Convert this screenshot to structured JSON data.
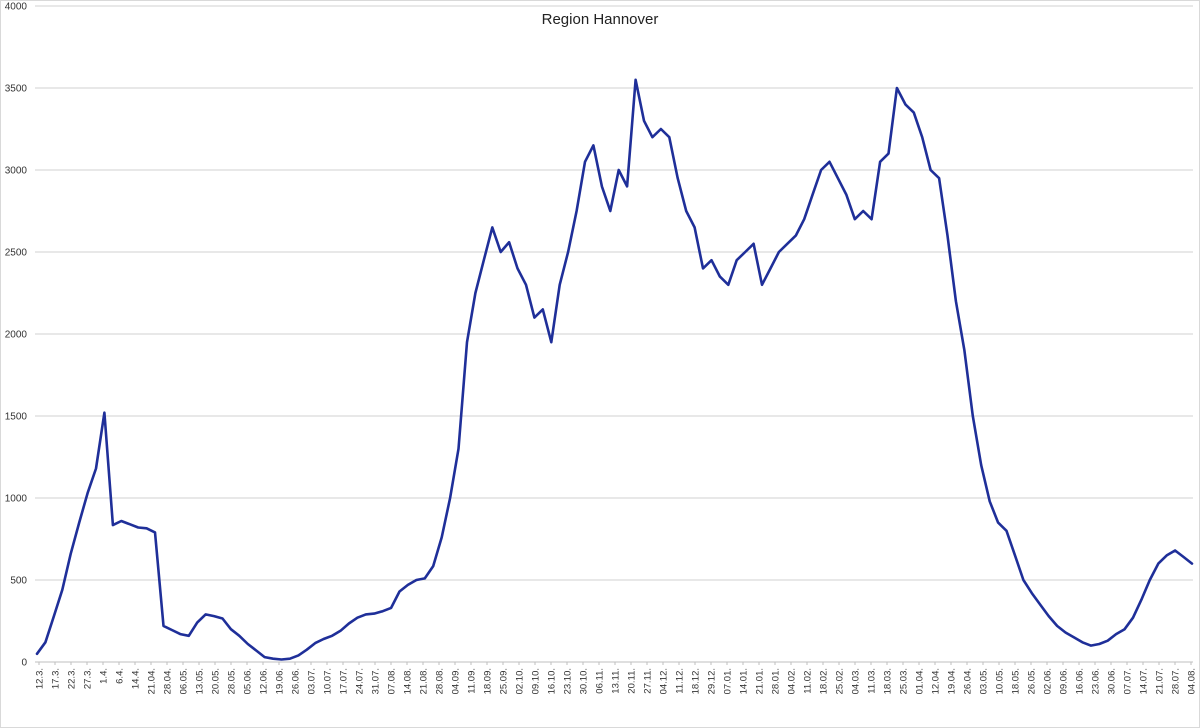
{
  "chart_data": {
    "type": "line",
    "title": "Region Hannover",
    "xlabel": "",
    "ylabel": "",
    "ylim": [
      0,
      4000
    ],
    "yticks": [
      0,
      500,
      1000,
      1500,
      2000,
      2500,
      3000,
      3500,
      4000
    ],
    "grid": true,
    "legend": "none",
    "line_color": "#1f2f99",
    "x_tick_labels": [
      "12.3.",
      "17.3.",
      "22.3.",
      "27.3.",
      "1.4.",
      "6.4.",
      "14.4.",
      "21.04.",
      "28.04.",
      "06.05.",
      "13.05.",
      "20.05.",
      "28.05.",
      "05.06.",
      "12.06.",
      "19.06.",
      "26.06.",
      "03.07.",
      "10.07.",
      "17.07.",
      "24.07.",
      "31.07.",
      "07.08.",
      "14.08.",
      "21.08.",
      "28.08.",
      "04.09.",
      "11.09.",
      "18.09.",
      "25.09.",
      "02.10.",
      "09.10.",
      "16.10.",
      "23.10.",
      "30.10.",
      "06.11.",
      "13.11.",
      "20.11.",
      "27.11.",
      "04.12.",
      "11.12.",
      "18.12.",
      "29.12.",
      "07.01.",
      "14.01.",
      "21.01.",
      "28.01.",
      "04.02.",
      "11.02.",
      "18.02.",
      "25.02.",
      "04.03.",
      "11.03.",
      "18.03.",
      "25.03.",
      "01.04.",
      "12.04.",
      "19.04.",
      "26.04.",
      "03.05.",
      "10.05.",
      "18.05.",
      "26.05.",
      "02.06.",
      "09.06.",
      "16.06.",
      "23.06.",
      "30.06.",
      "07.07.",
      "14.07.",
      "21.07.",
      "28.07.",
      "04.08."
    ],
    "series": [
      {
        "values": [
          50,
          120,
          280,
          440,
          660,
          850,
          1030,
          1180,
          1520,
          835,
          860,
          840,
          820,
          815,
          790,
          220,
          195,
          170,
          160,
          240,
          290,
          280,
          265,
          200,
          160,
          110,
          70,
          30,
          20,
          15,
          20,
          40,
          75,
          115,
          140,
          160,
          190,
          235,
          270,
          290,
          295,
          310,
          330,
          430,
          470,
          500,
          510,
          585,
          760,
          1000,
          1300,
          1950,
          2250,
          2450,
          2650,
          2500,
          2560,
          2400,
          2300,
          2100,
          2150,
          1950,
          2300,
          2500,
          2750,
          3050,
          3150,
          2900,
          2750,
          3000,
          2900,
          3550,
          3300,
          3200,
          3250,
          3200,
          2950,
          2750,
          2650,
          2400,
          2450,
          2350,
          2300,
          2450,
          2500,
          2550,
          2300,
          2400,
          2500,
          2550,
          2600,
          2700,
          2850,
          3000,
          3050,
          2950,
          2850,
          2700,
          2750,
          2700,
          3050,
          3100,
          3500,
          3400,
          3350,
          3200,
          3000,
          2950,
          2600,
          2200,
          1900,
          1500,
          1200,
          980,
          850,
          800,
          650,
          500,
          420,
          350,
          280,
          220,
          180,
          150,
          120,
          100,
          110,
          130,
          170,
          200,
          270,
          380,
          500,
          600,
          650,
          680,
          640,
          600
        ]
      }
    ]
  }
}
